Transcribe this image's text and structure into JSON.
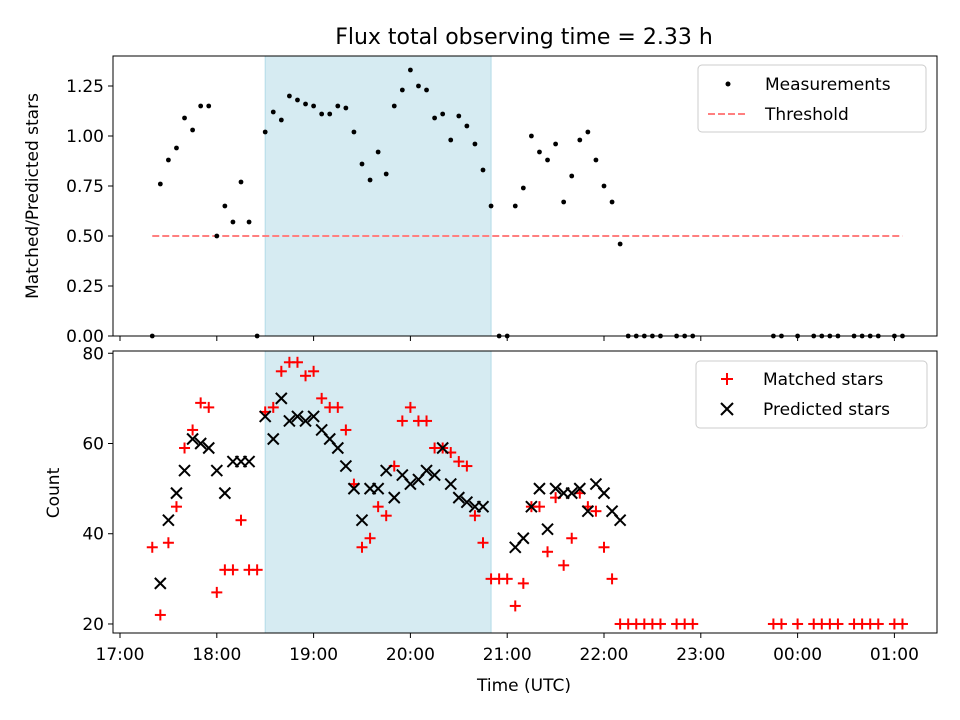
{
  "chart_data": [
    {
      "type": "scatter",
      "title": "Flux total observing time = 2.33 h",
      "xlabel": "",
      "ylabel": "Matched/Predicted stars",
      "ylim": [
        0,
        1.4
      ],
      "yticks": [
        "0.00",
        "0.25",
        "0.50",
        "0.75",
        "1.00",
        "1.25"
      ],
      "shaded_span": [
        "18:30",
        "20:50"
      ],
      "legend_position": "top-right",
      "series": [
        {
          "name": "Measurements",
          "color": "#000000",
          "marker": "dot",
          "points": [
            [
              "17:20",
              0
            ],
            [
              "17:25",
              0.76
            ],
            [
              "17:30",
              0.88
            ],
            [
              "17:35",
              0.94
            ],
            [
              "17:40",
              1.09
            ],
            [
              "17:45",
              1.03
            ],
            [
              "17:50",
              1.15
            ],
            [
              "17:55",
              1.15
            ],
            [
              "18:00",
              0.5
            ],
            [
              "18:05",
              0.65
            ],
            [
              "18:10",
              0.57
            ],
            [
              "18:15",
              0.77
            ],
            [
              "18:20",
              0.57
            ],
            [
              "18:25",
              0
            ],
            [
              "18:30",
              1.02
            ],
            [
              "18:35",
              1.12
            ],
            [
              "18:40",
              1.08
            ],
            [
              "18:45",
              1.2
            ],
            [
              "18:50",
              1.18
            ],
            [
              "18:55",
              1.16
            ],
            [
              "19:00",
              1.15
            ],
            [
              "19:05",
              1.11
            ],
            [
              "19:10",
              1.11
            ],
            [
              "19:15",
              1.15
            ],
            [
              "19:20",
              1.14
            ],
            [
              "19:25",
              1.02
            ],
            [
              "19:30",
              0.86
            ],
            [
              "19:35",
              0.78
            ],
            [
              "19:40",
              0.92
            ],
            [
              "19:45",
              0.81
            ],
            [
              "19:50",
              1.15
            ],
            [
              "19:55",
              1.23
            ],
            [
              "20:00",
              1.33
            ],
            [
              "20:05",
              1.25
            ],
            [
              "20:10",
              1.23
            ],
            [
              "20:15",
              1.09
            ],
            [
              "20:20",
              1.11
            ],
            [
              "20:25",
              0.98
            ],
            [
              "20:30",
              1.1
            ],
            [
              "20:35",
              1.05
            ],
            [
              "20:40",
              0.96
            ],
            [
              "20:45",
              0.83
            ],
            [
              "20:50",
              0.65
            ],
            [
              "20:55",
              0
            ],
            [
              "21:00",
              0
            ],
            [
              "21:05",
              0.65
            ],
            [
              "21:10",
              0.74
            ],
            [
              "21:15",
              1.0
            ],
            [
              "21:20",
              0.92
            ],
            [
              "21:25",
              0.88
            ],
            [
              "21:30",
              0.96
            ],
            [
              "21:35",
              0.67
            ],
            [
              "21:40",
              0.8
            ],
            [
              "21:45",
              0.98
            ],
            [
              "21:50",
              1.02
            ],
            [
              "21:55",
              0.88
            ],
            [
              "22:00",
              0.75
            ],
            [
              "22:05",
              0.67
            ],
            [
              "22:10",
              0.46
            ],
            [
              "22:15",
              0
            ],
            [
              "22:20",
              0
            ],
            [
              "22:25",
              0
            ],
            [
              "22:30",
              0
            ],
            [
              "22:35",
              0
            ],
            [
              "22:45",
              0
            ],
            [
              "22:50",
              0
            ],
            [
              "22:55",
              0
            ],
            [
              "23:45",
              0
            ],
            [
              "23:50",
              0
            ],
            [
              "24:00",
              0
            ],
            [
              "24:10",
              0
            ],
            [
              "24:15",
              0
            ],
            [
              "24:20",
              0
            ],
            [
              "24:25",
              0
            ],
            [
              "24:35",
              0
            ],
            [
              "24:40",
              0
            ],
            [
              "24:45",
              0
            ],
            [
              "24:50",
              0
            ],
            [
              "25:00",
              0
            ],
            [
              "25:05",
              0
            ]
          ]
        },
        {
          "name": "Threshold",
          "color": "#ff7f7f",
          "style": "dashed",
          "points": [
            [
              "17:20",
              0.5
            ],
            [
              "25:05",
              0.5
            ]
          ]
        }
      ]
    },
    {
      "type": "scatter",
      "title": "",
      "xlabel": "Time (UTC)",
      "ylabel": "Count",
      "ylim": [
        18,
        80.5
      ],
      "yticks": [
        "20",
        "40",
        "60",
        "80"
      ],
      "xticks": [
        "17:00",
        "18:00",
        "19:00",
        "20:00",
        "21:00",
        "22:00",
        "23:00",
        "00:00",
        "01:00"
      ],
      "shaded_span": [
        "18:30",
        "20:50"
      ],
      "legend_position": "top-right",
      "series": [
        {
          "name": "Matched stars",
          "color": "#ff0000",
          "marker": "plus",
          "points": [
            [
              "17:20",
              37
            ],
            [
              "17:25",
              22
            ],
            [
              "17:30",
              38
            ],
            [
              "17:35",
              46
            ],
            [
              "17:40",
              59
            ],
            [
              "17:45",
              63
            ],
            [
              "17:50",
              69
            ],
            [
              "17:55",
              68
            ],
            [
              "18:00",
              27
            ],
            [
              "18:05",
              32
            ],
            [
              "18:10",
              32
            ],
            [
              "18:15",
              43
            ],
            [
              "18:20",
              32
            ],
            [
              "18:25",
              32
            ],
            [
              "18:30",
              67
            ],
            [
              "18:35",
              68
            ],
            [
              "18:40",
              76
            ],
            [
              "18:45",
              78
            ],
            [
              "18:50",
              78
            ],
            [
              "18:55",
              75
            ],
            [
              "19:00",
              76
            ],
            [
              "19:05",
              70
            ],
            [
              "19:10",
              68
            ],
            [
              "19:15",
              68
            ],
            [
              "19:20",
              63
            ],
            [
              "19:25",
              51
            ],
            [
              "19:30",
              37
            ],
            [
              "19:35",
              39
            ],
            [
              "19:40",
              46
            ],
            [
              "19:45",
              44
            ],
            [
              "19:50",
              55
            ],
            [
              "19:55",
              65
            ],
            [
              "20:00",
              68
            ],
            [
              "20:05",
              65
            ],
            [
              "20:10",
              65
            ],
            [
              "20:15",
              59
            ],
            [
              "20:20",
              59
            ],
            [
              "20:25",
              58
            ],
            [
              "20:30",
              56
            ],
            [
              "20:35",
              55
            ],
            [
              "20:40",
              44
            ],
            [
              "20:45",
              38
            ],
            [
              "20:50",
              30
            ],
            [
              "20:55",
              30
            ],
            [
              "21:00",
              30
            ],
            [
              "21:05",
              24
            ],
            [
              "21:10",
              29
            ],
            [
              "21:15",
              46
            ],
            [
              "21:20",
              46
            ],
            [
              "21:25",
              36
            ],
            [
              "21:30",
              48
            ],
            [
              "21:35",
              33
            ],
            [
              "21:40",
              39
            ],
            [
              "21:45",
              49
            ],
            [
              "21:50",
              46
            ],
            [
              "21:55",
              45
            ],
            [
              "22:00",
              37
            ],
            [
              "22:05",
              30
            ],
            [
              "22:10",
              20
            ],
            [
              "22:15",
              20
            ],
            [
              "22:20",
              20
            ],
            [
              "22:25",
              20
            ],
            [
              "22:30",
              20
            ],
            [
              "22:35",
              20
            ],
            [
              "22:45",
              20
            ],
            [
              "22:50",
              20
            ],
            [
              "22:55",
              20
            ],
            [
              "23:45",
              20
            ],
            [
              "23:50",
              20
            ],
            [
              "24:00",
              20
            ],
            [
              "24:10",
              20
            ],
            [
              "24:15",
              20
            ],
            [
              "24:20",
              20
            ],
            [
              "24:25",
              20
            ],
            [
              "24:35",
              20
            ],
            [
              "24:40",
              20
            ],
            [
              "24:45",
              20
            ],
            [
              "24:50",
              20
            ],
            [
              "25:00",
              20
            ],
            [
              "25:05",
              20
            ]
          ]
        },
        {
          "name": "Predicted stars",
          "color": "#000000",
          "marker": "x",
          "points": [
            [
              "17:25",
              29
            ],
            [
              "17:30",
              43
            ],
            [
              "17:35",
              49
            ],
            [
              "17:40",
              54
            ],
            [
              "17:45",
              61
            ],
            [
              "17:50",
              60
            ],
            [
              "17:55",
              59
            ],
            [
              "18:00",
              54
            ],
            [
              "18:05",
              49
            ],
            [
              "18:10",
              56
            ],
            [
              "18:15",
              56
            ],
            [
              "18:20",
              56
            ],
            [
              "18:30",
              66
            ],
            [
              "18:35",
              61
            ],
            [
              "18:40",
              70
            ],
            [
              "18:45",
              65
            ],
            [
              "18:50",
              66
            ],
            [
              "18:55",
              65
            ],
            [
              "19:00",
              66
            ],
            [
              "19:05",
              63
            ],
            [
              "19:10",
              61
            ],
            [
              "19:15",
              59
            ],
            [
              "19:20",
              55
            ],
            [
              "19:25",
              50
            ],
            [
              "19:30",
              43
            ],
            [
              "19:35",
              50
            ],
            [
              "19:40",
              50
            ],
            [
              "19:45",
              54
            ],
            [
              "19:50",
              48
            ],
            [
              "19:55",
              53
            ],
            [
              "20:00",
              51
            ],
            [
              "20:05",
              52
            ],
            [
              "20:10",
              54
            ],
            [
              "20:15",
              53
            ],
            [
              "20:20",
              59
            ],
            [
              "20:25",
              51
            ],
            [
              "20:30",
              48
            ],
            [
              "20:35",
              47
            ],
            [
              "20:40",
              46
            ],
            [
              "20:45",
              46
            ],
            [
              "21:05",
              37
            ],
            [
              "21:10",
              39
            ],
            [
              "21:15",
              46
            ],
            [
              "21:20",
              50
            ],
            [
              "21:25",
              41
            ],
            [
              "21:30",
              50
            ],
            [
              "21:35",
              49
            ],
            [
              "21:40",
              49
            ],
            [
              "21:45",
              50
            ],
            [
              "21:50",
              45
            ],
            [
              "21:55",
              51
            ],
            [
              "22:00",
              49
            ],
            [
              "22:05",
              45
            ],
            [
              "22:10",
              43
            ]
          ]
        }
      ]
    }
  ]
}
